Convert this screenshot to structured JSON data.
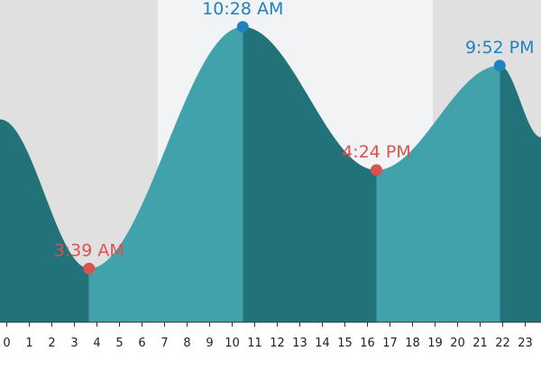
{
  "chart_data": {
    "type": "area",
    "xlim": [
      -0.3,
      23.7
    ],
    "ylim": [
      0,
      5.4
    ],
    "x_ticks": [
      0,
      1,
      2,
      3,
      4,
      5,
      6,
      7,
      8,
      9,
      10,
      11,
      12,
      13,
      14,
      15,
      16,
      17,
      18,
      19,
      20,
      21,
      22,
      23
    ],
    "x_tick_labels": [
      "0",
      "1",
      "2",
      "3",
      "4",
      "5",
      "6",
      "7",
      "8",
      "9",
      "10",
      "11",
      "12",
      "13",
      "14",
      "15",
      "16",
      "17",
      "18",
      "19",
      "20",
      "21",
      "22",
      "23"
    ],
    "night_bands": [
      [
        -0.3,
        6.7
      ],
      [
        18.9,
        23.7
      ]
    ],
    "extremes": [
      {
        "x": 3.65,
        "y": 0.9,
        "label": "3:39 AM",
        "kind": "low"
      },
      {
        "x": 10.47,
        "y": 4.95,
        "label": "10:28 AM",
        "kind": "high"
      },
      {
        "x": 16.4,
        "y": 2.55,
        "label": "4:24 PM",
        "kind": "low"
      },
      {
        "x": 21.87,
        "y": 4.3,
        "label": "9:52 PM",
        "kind": "high"
      }
    ],
    "start_level": {
      "x": -0.3,
      "y": 3.4
    },
    "end_level": {
      "x": 23.7,
      "y": 3.1
    },
    "colors": {
      "night": "#e0e0e0",
      "day": "#f1f3f5",
      "rising": "#41a2ab",
      "falling": "#227279",
      "high_marker": "#1f82c0",
      "low_marker": "#d9534f"
    }
  }
}
